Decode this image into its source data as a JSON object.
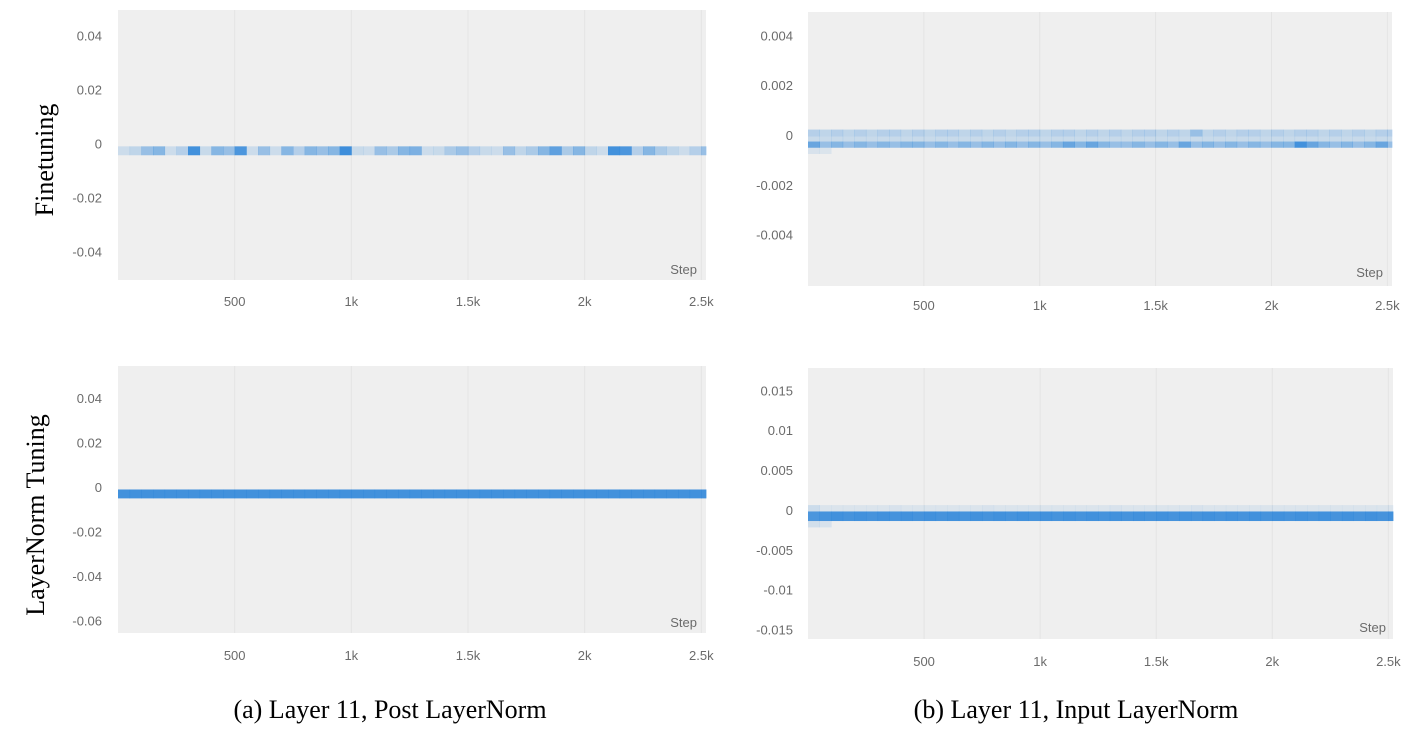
{
  "colors": {
    "panel_bg": "#efefef",
    "gridline": "#e4e4e4",
    "cell": "#2f86d9",
    "tick_text": "#6b6b6b"
  },
  "row_labels": [
    "Finetuning",
    "LayerNorm Tuning"
  ],
  "captions": [
    "(a) Layer 11, Post LayerNorm",
    "(b) Layer 11, Input LayerNorm"
  ],
  "chart_data": [
    {
      "type": "heatmap",
      "row": "Finetuning",
      "column": "(a) Layer 11, Post LayerNorm",
      "xlabel": "Step",
      "xlim": [
        0,
        2520
      ],
      "ylim": [
        -0.05,
        0.05
      ],
      "xticks": [
        500,
        1000,
        1500,
        2000,
        2500
      ],
      "xtick_labels": [
        "500",
        "1k",
        "1.5k",
        "2k",
        "2.5k"
      ],
      "yticks": [
        0.04,
        0.02,
        0,
        -0.02,
        -0.04
      ],
      "ytick_labels": [
        "0.04",
        "0.02",
        "0",
        "-0.02",
        "-0.04"
      ],
      "bin_step": 50,
      "bands": [
        {
          "y0": -0.0038,
          "y1": -0.0005,
          "intensity": [
            0.18,
            0.25,
            0.45,
            0.55,
            0.18,
            0.3,
            0.9,
            0.2,
            0.55,
            0.45,
            0.85,
            0.18,
            0.45,
            0.18,
            0.55,
            0.3,
            0.55,
            0.45,
            0.55,
            0.92,
            0.2,
            0.18,
            0.45,
            0.35,
            0.55,
            0.6,
            0.18,
            0.2,
            0.35,
            0.45,
            0.3,
            0.2,
            0.18,
            0.45,
            0.25,
            0.35,
            0.55,
            0.75,
            0.35,
            0.55,
            0.25,
            0.18,
            0.9,
            0.85,
            0.3,
            0.55,
            0.35,
            0.25,
            0.18,
            0.3,
            0.45
          ]
        }
      ]
    },
    {
      "type": "heatmap",
      "row": "Finetuning",
      "column": "(b) Layer 11, Input LayerNorm",
      "xlabel": "Step",
      "xlim": [
        0,
        2520
      ],
      "ylim": [
        -0.006,
        0.005
      ],
      "xticks": [
        500,
        1000,
        1500,
        2000,
        2500
      ],
      "xtick_labels": [
        "500",
        "1k",
        "1.5k",
        "2k",
        "2.5k"
      ],
      "yticks": [
        0.004,
        0.002,
        0,
        -0.002,
        -0.004
      ],
      "ytick_labels": [
        "0.004",
        "0.002",
        "0",
        "-0.002",
        "-0.004"
      ],
      "bin_step": 50,
      "bands": [
        {
          "y0": 0.0,
          "y1": 0.00028,
          "intensity": [
            0.3,
            0.25,
            0.3,
            0.25,
            0.3,
            0.25,
            0.3,
            0.3,
            0.25,
            0.3,
            0.25,
            0.3,
            0.3,
            0.25,
            0.3,
            0.25,
            0.3,
            0.25,
            0.3,
            0.3,
            0.25,
            0.3,
            0.3,
            0.25,
            0.3,
            0.25,
            0.3,
            0.25,
            0.3,
            0.3,
            0.25,
            0.3,
            0.25,
            0.45,
            0.25,
            0.3,
            0.25,
            0.3,
            0.3,
            0.25,
            0.3,
            0.25,
            0.3,
            0.3,
            0.25,
            0.3,
            0.25,
            0.3,
            0.25,
            0.3,
            0.3
          ]
        },
        {
          "y0": -0.0002,
          "y1": 0.0,
          "intensity": [
            0.2,
            0.2,
            0.2,
            0.2,
            0.2,
            0.2,
            0.2,
            0.2,
            0.2,
            0.2,
            0.2,
            0.2,
            0.2,
            0.2,
            0.2,
            0.2,
            0.2,
            0.2,
            0.2,
            0.2,
            0.2,
            0.2,
            0.2,
            0.2,
            0.2,
            0.2,
            0.2,
            0.2,
            0.2,
            0.2,
            0.2,
            0.2,
            0.2,
            0.2,
            0.2,
            0.2,
            0.2,
            0.2,
            0.2,
            0.2,
            0.2,
            0.2,
            0.2,
            0.2,
            0.2,
            0.2,
            0.2,
            0.2,
            0.2,
            0.2,
            0.2
          ]
        },
        {
          "y0": -0.00045,
          "y1": -0.0002,
          "intensity": [
            0.7,
            0.45,
            0.55,
            0.45,
            0.55,
            0.45,
            0.55,
            0.45,
            0.55,
            0.55,
            0.45,
            0.55,
            0.45,
            0.55,
            0.45,
            0.55,
            0.45,
            0.55,
            0.45,
            0.55,
            0.45,
            0.55,
            0.7,
            0.55,
            0.7,
            0.55,
            0.45,
            0.45,
            0.55,
            0.45,
            0.55,
            0.45,
            0.7,
            0.45,
            0.55,
            0.45,
            0.55,
            0.45,
            0.55,
            0.45,
            0.55,
            0.55,
            0.9,
            0.7,
            0.55,
            0.45,
            0.55,
            0.45,
            0.55,
            0.7,
            0.45
          ]
        },
        {
          "y0": -0.0007,
          "y1": -0.00045,
          "intensity": [
            0.12,
            0.1,
            0.0,
            0.0,
            0.0,
            0.0,
            0.0,
            0.0,
            0.0,
            0.0,
            0.0,
            0.0,
            0.0,
            0.0,
            0.0,
            0.0,
            0.0,
            0.0,
            0.0,
            0.0,
            0.0,
            0.0,
            0.0,
            0.0,
            0.0,
            0.0,
            0.0,
            0.0,
            0.0,
            0.0,
            0.0,
            0.0,
            0.0,
            0.0,
            0.0,
            0.0,
            0.0,
            0.0,
            0.0,
            0.0,
            0.0,
            0.0,
            0.0,
            0.0,
            0.0,
            0.0,
            0.0,
            0.0,
            0.0,
            0.0,
            0.0
          ]
        }
      ]
    },
    {
      "type": "heatmap",
      "row": "LayerNorm Tuning",
      "column": "(a) Layer 11, Post LayerNorm",
      "xlabel": "Step",
      "xlim": [
        0,
        2520
      ],
      "ylim": [
        -0.065,
        0.055
      ],
      "xticks": [
        500,
        1000,
        1500,
        2000,
        2500
      ],
      "xtick_labels": [
        "500",
        "1k",
        "1.5k",
        "2k",
        "2.5k"
      ],
      "yticks": [
        0.04,
        0.02,
        0,
        -0.02,
        -0.04,
        -0.06
      ],
      "ytick_labels": [
        "0.04",
        "0.02",
        "0",
        "-0.02",
        "-0.04",
        "-0.06"
      ],
      "bin_step": 50,
      "bands": [
        {
          "y0": -0.0045,
          "y1": -0.0005,
          "intensity": [
            0.9,
            0.9,
            0.9,
            0.9,
            0.9,
            0.9,
            0.9,
            0.9,
            0.9,
            0.9,
            0.9,
            0.9,
            0.9,
            0.9,
            0.9,
            0.9,
            0.9,
            0.9,
            0.9,
            0.9,
            0.9,
            0.9,
            0.9,
            0.9,
            0.9,
            0.9,
            0.9,
            0.9,
            0.9,
            0.9,
            0.9,
            0.9,
            0.9,
            0.9,
            0.9,
            0.9,
            0.9,
            0.9,
            0.9,
            0.9,
            0.9,
            0.9,
            0.9,
            0.9,
            0.9,
            0.9,
            0.9,
            0.9,
            0.9,
            0.9,
            0.9
          ]
        }
      ]
    },
    {
      "type": "heatmap",
      "row": "LayerNorm Tuning",
      "column": "(b) Layer 11, Input LayerNorm",
      "xlabel": "Step",
      "xlim": [
        0,
        2520
      ],
      "ylim": [
        -0.016,
        0.018
      ],
      "xticks": [
        500,
        1000,
        1500,
        2000,
        2500
      ],
      "xtick_labels": [
        "500",
        "1k",
        "1.5k",
        "2k",
        "2.5k"
      ],
      "yticks": [
        0.015,
        0.01,
        0.005,
        0,
        -0.005,
        -0.01,
        -0.015
      ],
      "ytick_labels": [
        "0.015",
        "0.01",
        "0.005",
        "0",
        "-0.005",
        "-0.01",
        "-0.015"
      ],
      "bin_step": 50,
      "bands": [
        {
          "y0": 0.0,
          "y1": 0.0008,
          "intensity": [
            0.18,
            0.1,
            0.1,
            0.1,
            0.1,
            0.1,
            0.1,
            0.12,
            0.1,
            0.1,
            0.1,
            0.1,
            0.1,
            0.1,
            0.1,
            0.12,
            0.1,
            0.1,
            0.1,
            0.1,
            0.1,
            0.1,
            0.1,
            0.1,
            0.1,
            0.1,
            0.12,
            0.1,
            0.1,
            0.1,
            0.1,
            0.1,
            0.1,
            0.12,
            0.1,
            0.1,
            0.1,
            0.1,
            0.1,
            0.1,
            0.1,
            0.1,
            0.1,
            0.1,
            0.1,
            0.1,
            0.1,
            0.1,
            0.1,
            0.1,
            0.1
          ]
        },
        {
          "y0": -0.0012,
          "y1": 0.0,
          "intensity": [
            0.85,
            0.88,
            0.9,
            0.88,
            0.9,
            0.88,
            0.9,
            0.88,
            0.9,
            0.88,
            0.9,
            0.88,
            0.9,
            0.88,
            0.9,
            0.88,
            0.9,
            0.88,
            0.9,
            0.88,
            0.9,
            0.88,
            0.9,
            0.88,
            0.9,
            0.88,
            0.9,
            0.88,
            0.9,
            0.88,
            0.9,
            0.88,
            0.9,
            0.88,
            0.9,
            0.88,
            0.9,
            0.88,
            0.9,
            0.88,
            0.9,
            0.88,
            0.9,
            0.88,
            0.9,
            0.88,
            0.9,
            0.88,
            0.9,
            0.88,
            0.9
          ]
        },
        {
          "y0": -0.002,
          "y1": -0.0012,
          "intensity": [
            0.15,
            0.12,
            0.0,
            0.0,
            0.0,
            0.0,
            0.0,
            0.0,
            0.0,
            0.0,
            0.0,
            0.0,
            0.0,
            0.0,
            0.0,
            0.0,
            0.0,
            0.0,
            0.0,
            0.0,
            0.0,
            0.0,
            0.0,
            0.0,
            0.0,
            0.0,
            0.0,
            0.0,
            0.0,
            0.0,
            0.0,
            0.0,
            0.0,
            0.0,
            0.0,
            0.0,
            0.0,
            0.0,
            0.0,
            0.0,
            0.0,
            0.0,
            0.0,
            0.0,
            0.0,
            0.0,
            0.0,
            0.0,
            0.0,
            0.0,
            0.0
          ]
        }
      ]
    }
  ]
}
